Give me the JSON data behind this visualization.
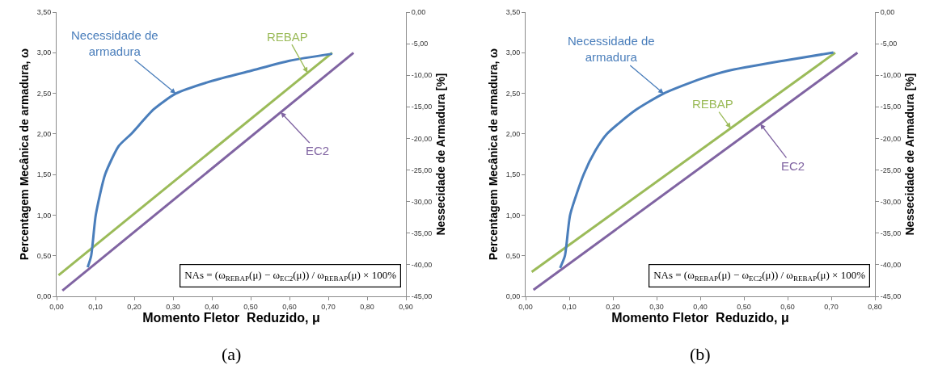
{
  "chart_data": [
    {
      "type": "line",
      "xlabel": "Momento Fletor  Reduzido, μ",
      "ylabel": "Percentagem Mecânica de armadura, ω",
      "y2label": "Nessecidade de Armadura [%]",
      "series": [
        {
          "name": "Necessidade de armadura",
          "color": "#4a7ebb",
          "axis": "y2",
          "x": [
            0.08,
            0.089,
            0.101,
            0.125,
            0.16,
            0.192,
            0.25,
            0.307,
            0.4,
            0.5,
            0.6,
            0.71
          ],
          "values": [
            -40.4,
            -38.6,
            -32.1,
            -25.7,
            -21.2,
            -19.3,
            -15.4,
            -12.9,
            -10.9,
            -9.3,
            -7.7,
            -6.6
          ]
        },
        {
          "name": "REBAP",
          "color": "#9bbb59",
          "x": [
            0.005,
            0.71
          ],
          "values": [
            0.26,
            3.0
          ]
        },
        {
          "name": "EC2",
          "color": "#8064a2",
          "x": [
            0.015,
            0.765
          ],
          "values": [
            0.07,
            3.0
          ]
        }
      ],
      "xlim": [
        0,
        0.9
      ],
      "xticks": [
        {
          "value": 0,
          "label": "0,00"
        },
        {
          "value": 0.1,
          "label": "0,10"
        },
        {
          "value": 0.2,
          "label": "0,20"
        },
        {
          "value": 0.3,
          "label": "0,30"
        },
        {
          "value": 0.4,
          "label": "0,40"
        },
        {
          "value": 0.5,
          "label": "0,50"
        },
        {
          "value": 0.6,
          "label": "0,60"
        },
        {
          "value": 0.7,
          "label": "0,70"
        },
        {
          "value": 0.8,
          "label": "0,80"
        },
        {
          "value": 0.9,
          "label": "0,90"
        }
      ],
      "ylim": [
        0,
        3.5
      ],
      "yticks": [
        {
          "value": 0,
          "label": "0,00"
        },
        {
          "value": 0.5,
          "label": "0,50"
        },
        {
          "value": 1,
          "label": "1,00"
        },
        {
          "value": 1.5,
          "label": "1,50"
        },
        {
          "value": 2,
          "label": "2,00"
        },
        {
          "value": 2.5,
          "label": "2,50"
        },
        {
          "value": 3,
          "label": "3,00"
        },
        {
          "value": 3.5,
          "label": "3,50"
        }
      ],
      "y2lim": [
        -45,
        0
      ],
      "y2ticks": [
        {
          "value": -45,
          "label": "-45,00"
        },
        {
          "value": -40,
          "label": "-40,00"
        },
        {
          "value": -35,
          "label": "-35,00"
        },
        {
          "value": -30,
          "label": "-30,00"
        },
        {
          "value": -25,
          "label": "-25,00"
        },
        {
          "value": -20,
          "label": "-20,00"
        },
        {
          "value": -15,
          "label": "-15,00"
        },
        {
          "value": -10,
          "label": "-10,00"
        },
        {
          "value": -5,
          "label": "-5,00"
        },
        {
          "value": 0,
          "label": "0,00"
        }
      ],
      "annotations": [
        "NAs = (ω$_{REBAP}$(μ) − ω$_{EC2}$(μ)) / ω$_{REBAP}$(μ) × 100%",
        "(a)"
      ],
      "grid": false,
      "legend": false,
      "marker": "none",
      "line_style": "solid"
    },
    {
      "type": "line",
      "xlabel": "Momento Fletor  Reduzido, μ",
      "ylabel": "Percentagem Mecânica de armadura, ω",
      "y2label": "Nessecidade de Armadura [%]",
      "series": [
        {
          "name": "Necessidade de armadura",
          "color": "#4a7ebb",
          "axis": "y2",
          "x": [
            0.079,
            0.09,
            0.102,
            0.133,
            0.16,
            0.186,
            0.25,
            0.316,
            0.4,
            0.463,
            0.59,
            0.705
          ],
          "values": [
            -40.5,
            -38.6,
            -32.1,
            -25.7,
            -21.9,
            -19.3,
            -15.6,
            -12.9,
            -10.6,
            -9.3,
            -7.7,
            -6.4
          ]
        },
        {
          "name": "REBAP",
          "color": "#9bbb59",
          "x": [
            0.014,
            0.709
          ],
          "values": [
            0.3,
            3.0
          ]
        },
        {
          "name": "EC2",
          "color": "#8064a2",
          "x": [
            0.018,
            0.76
          ],
          "values": [
            0.08,
            3.0
          ]
        }
      ],
      "xlim": [
        0,
        0.8
      ],
      "xticks": [
        {
          "value": 0,
          "label": "0,00"
        },
        {
          "value": 0.1,
          "label": "0,10"
        },
        {
          "value": 0.2,
          "label": "0,20"
        },
        {
          "value": 0.3,
          "label": "0,30"
        },
        {
          "value": 0.4,
          "label": "0,40"
        },
        {
          "value": 0.5,
          "label": "0,50"
        },
        {
          "value": 0.6,
          "label": "0,60"
        },
        {
          "value": 0.7,
          "label": "0,70"
        },
        {
          "value": 0.8,
          "label": "0,80"
        }
      ],
      "ylim": [
        0,
        3.5
      ],
      "yticks": [
        {
          "value": 0,
          "label": "0,00"
        },
        {
          "value": 0.5,
          "label": "0,50"
        },
        {
          "value": 1,
          "label": "1,00"
        },
        {
          "value": 1.5,
          "label": "1,50"
        },
        {
          "value": 2,
          "label": "2,00"
        },
        {
          "value": 2.5,
          "label": "2,50"
        },
        {
          "value": 3,
          "label": "3,00"
        },
        {
          "value": 3.5,
          "label": "3,50"
        }
      ],
      "y2lim": [
        -45,
        0
      ],
      "y2ticks": [
        {
          "value": -45,
          "label": "-45,00"
        },
        {
          "value": -40,
          "label": "-40,00"
        },
        {
          "value": -35,
          "label": "-35,00"
        },
        {
          "value": -30,
          "label": "-30,00"
        },
        {
          "value": -25,
          "label": "-25,00"
        },
        {
          "value": -20,
          "label": "-20,00"
        },
        {
          "value": -15,
          "label": "-15,00"
        },
        {
          "value": -10,
          "label": "-10,00"
        },
        {
          "value": -5,
          "label": "-5,00"
        },
        {
          "value": 0,
          "label": "0,00"
        }
      ],
      "annotations": [
        "NAs = (ω$_{REBAP}$(μ) − ω$_{EC2}$(μ)) / ω$_{REBAP}$(μ) × 100%",
        "(b)"
      ],
      "grid": false,
      "legend": false,
      "marker": "none",
      "line_style": "solid"
    }
  ]
}
